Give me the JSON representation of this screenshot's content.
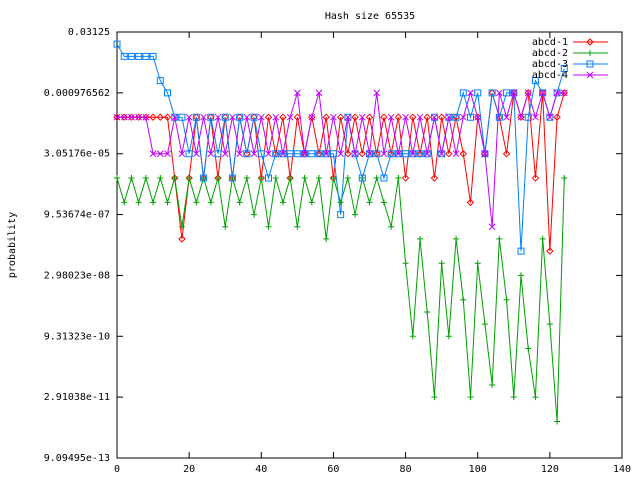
{
  "chart_data": {
    "type": "line",
    "title": "Hash size 65535",
    "y_label": "probability",
    "log_base_y": 2,
    "xlim": [
      0,
      140
    ],
    "xticks": [
      0,
      20,
      40,
      60,
      80,
      100,
      120,
      140
    ],
    "ylim": [
      9.094947017729282e-13,
      0.03125
    ],
    "yticks": [
      0.03125,
      {
        "value": 0.0009765625,
        "label": "0.000976562"
      },
      {
        "value": 3.0517578125e-05,
        "label": "3.05176e-05"
      },
      {
        "value": 9.5367431640625e-07,
        "label": "9.53674e-07"
      },
      {
        "value": 2.9802322387695312e-08,
        "label": "2.98023e-08"
      },
      {
        "value": 9.31322574658203e-10,
        "label": "9.31323e-10"
      },
      {
        "value": 2.9103830456733704e-11,
        "label": "2.91038e-11"
      },
      {
        "value": 9.094947017729282e-13,
        "label": "9.09495e-13"
      }
    ],
    "legend": "top-right",
    "x": [
      0,
      2,
      4,
      6,
      8,
      10,
      12,
      14,
      16,
      18,
      20,
      22,
      24,
      26,
      28,
      30,
      32,
      34,
      36,
      38,
      40,
      42,
      44,
      46,
      48,
      50,
      52,
      54,
      56,
      58,
      60,
      62,
      64,
      66,
      68,
      70,
      72,
      74,
      76,
      78,
      80,
      82,
      84,
      86,
      88,
      90,
      92,
      94,
      96,
      98,
      100,
      102,
      104,
      106,
      108,
      110,
      112,
      114,
      116,
      118,
      120,
      122,
      124
    ],
    "series": [
      {
        "name": "abcd-1",
        "color": "#ff0000",
        "marker": "diamond",
        "values": [
          0.0002441,
          0.0002441,
          0.0002441,
          0.0002441,
          0.0002441,
          0.0002441,
          0.0002441,
          0.0002441,
          7.629e-06,
          2.384e-07,
          7.629e-06,
          0.0002441,
          7.629e-06,
          0.0002441,
          7.629e-06,
          0.0002441,
          7.629e-06,
          0.0002441,
          3.052e-05,
          0.0002441,
          7.629e-06,
          0.0002441,
          3.052e-05,
          0.0002441,
          7.629e-06,
          0.0002441,
          3.052e-05,
          0.0002441,
          3.052e-05,
          0.0002441,
          7.629e-06,
          0.0002441,
          3.052e-05,
          0.0002441,
          3.052e-05,
          0.0002441,
          3.052e-05,
          0.0002441,
          3.052e-05,
          0.0002441,
          7.629e-06,
          0.0002441,
          3.052e-05,
          0.0002441,
          7.629e-06,
          0.0002441,
          3.052e-05,
          0.0002441,
          3.052e-05,
          1.907e-06,
          0.0002441,
          3.052e-05,
          0.0009766,
          0.0002441,
          3.052e-05,
          0.0009766,
          0.0002441,
          0.0009766,
          7.629e-06,
          0.0009766,
          1.192e-07,
          0.0002441,
          0.0009766
        ]
      },
      {
        "name": "abcd-2",
        "color": "#00a000",
        "marker": "plus",
        "values": [
          7.629e-06,
          1.907e-06,
          7.629e-06,
          1.907e-06,
          7.629e-06,
          1.907e-06,
          7.629e-06,
          1.907e-06,
          7.629e-06,
          4.768e-07,
          7.629e-06,
          1.907e-06,
          7.629e-06,
          1.907e-06,
          7.629e-06,
          4.768e-07,
          7.629e-06,
          1.907e-06,
          7.629e-06,
          9.537e-07,
          7.629e-06,
          4.768e-07,
          7.629e-06,
          1.907e-06,
          7.629e-06,
          4.768e-07,
          7.629e-06,
          1.907e-06,
          7.629e-06,
          2.384e-07,
          7.629e-06,
          1.907e-06,
          7.629e-06,
          9.537e-07,
          7.629e-06,
          1.907e-06,
          7.629e-06,
          1.907e-06,
          4.768e-07,
          7.629e-06,
          5.96e-08,
          9.313e-10,
          2.384e-07,
          3.725e-09,
          2.91e-11,
          5.96e-08,
          9.313e-10,
          2.384e-07,
          7.451e-09,
          2.91e-11,
          5.96e-08,
          1.863e-09,
          5.821e-11,
          2.384e-07,
          7.451e-09,
          2.91e-11,
          2.98e-08,
          4.657e-10,
          2.91e-11,
          2.384e-07,
          1.863e-09,
          7.276e-12,
          7.629e-06
        ]
      },
      {
        "name": "abcd-3",
        "color": "#0080ff",
        "marker": "square",
        "values": [
          0.015625,
          0.0078125,
          0.0078125,
          0.0078125,
          0.0078125,
          0.0078125,
          0.001953,
          0.0009766,
          0.0002441,
          0.0002441,
          3.052e-05,
          0.0002441,
          7.629e-06,
          0.0002441,
          3.052e-05,
          0.0002441,
          7.629e-06,
          0.0002441,
          3.052e-05,
          0.0002441,
          3.052e-05,
          7.629e-06,
          3.052e-05,
          3.052e-05,
          3.052e-05,
          3.052e-05,
          3.052e-05,
          3.052e-05,
          3.052e-05,
          3.052e-05,
          3.052e-05,
          9.537e-07,
          0.0002441,
          3.052e-05,
          7.629e-06,
          3.052e-05,
          3.052e-05,
          7.629e-06,
          3.052e-05,
          3.052e-05,
          3.052e-05,
          3.052e-05,
          3.052e-05,
          3.052e-05,
          0.0002441,
          3.052e-05,
          0.0002441,
          0.0002441,
          0.0009766,
          0.0002441,
          0.0009766,
          3.052e-05,
          0.0009766,
          0.0002441,
          0.0009766,
          0.0009766,
          1.192e-07,
          0.0002441,
          0.001953,
          0.0009766,
          0.0002441,
          0.0009766,
          0.00390625
        ]
      },
      {
        "name": "abcd-4",
        "color": "#c000ff",
        "marker": "cross",
        "values": [
          0.0002441,
          0.0002441,
          0.0002441,
          0.0002441,
          0.0002441,
          3.052e-05,
          3.052e-05,
          3.052e-05,
          0.0002441,
          3.052e-05,
          0.0002441,
          3.052e-05,
          0.0002441,
          3.052e-05,
          0.0002441,
          3.052e-05,
          0.0002441,
          3.052e-05,
          0.0002441,
          3.052e-05,
          0.0002441,
          3.052e-05,
          0.0002441,
          3.052e-05,
          0.0002441,
          0.0009766,
          3.052e-05,
          0.0002441,
          0.0009766,
          3.052e-05,
          0.0002441,
          3.052e-05,
          0.0002441,
          3.052e-05,
          0.0002441,
          3.052e-05,
          0.0009766,
          3.052e-05,
          0.0002441,
          3.052e-05,
          0.0002441,
          3.052e-05,
          0.0002441,
          3.052e-05,
          0.0002441,
          3.052e-05,
          0.0002441,
          3.052e-05,
          0.0002441,
          0.0009766,
          0.0002441,
          3.052e-05,
          4.768e-07,
          0.0009766,
          0.0002441,
          0.0009766,
          0.0002441,
          0.0009766,
          0.0002441,
          0.0009766,
          0.0002441,
          0.0009766,
          0.0009766
        ]
      }
    ]
  }
}
